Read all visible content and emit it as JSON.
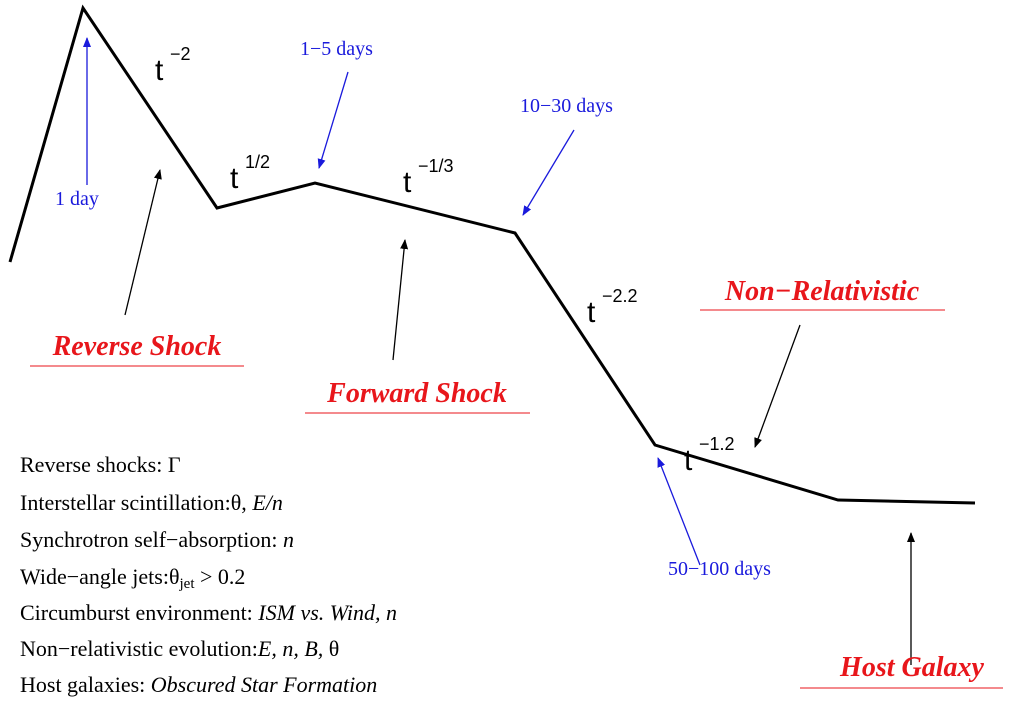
{
  "power_laws": [
    {
      "base": "t",
      "exponent": "−2"
    },
    {
      "base": "t",
      "exponent": "1/2"
    },
    {
      "base": "t",
      "exponent": "−1/3"
    },
    {
      "base": "t",
      "exponent": "−2.2"
    },
    {
      "base": "t",
      "exponent": "−1.2"
    }
  ],
  "times": [
    "1 day",
    "1−5 days",
    "10−30 days",
    "50−100 days"
  ],
  "phases": [
    "Reverse Shock",
    "Forward Shock",
    "Non−Relativistic",
    "Host Galaxy"
  ],
  "probes": [
    [
      {
        "text": "Reverse shocks: ",
        "style": "normal"
      },
      {
        "text": "Γ",
        "style": "normal"
      }
    ],
    [
      {
        "text": "Interstellar scintillation:θ, ",
        "style": "normal"
      },
      {
        "text": "E/n",
        "style": "italic"
      }
    ],
    [
      {
        "text": "Synchrotron self−absorption: ",
        "style": "normal"
      },
      {
        "text": "n",
        "style": "italic"
      }
    ],
    [
      {
        "text": "Wide−angle jets:θ",
        "style": "normal"
      },
      {
        "text": "jet",
        "style": "sub"
      },
      {
        "text": " > 0.2",
        "style": "normal"
      }
    ],
    [
      {
        "text": "Circumburst environment: ",
        "style": "normal"
      },
      {
        "text": "ISM vs. Wind, n",
        "style": "italic"
      }
    ],
    [
      {
        "text": "Non−relativistic evolution:",
        "style": "normal"
      },
      {
        "text": "E, n, B,",
        "style": "italic"
      },
      {
        "text": "  θ",
        "style": "normal"
      }
    ],
    [
      {
        "text": "Host galaxies: ",
        "style": "normal"
      },
      {
        "text": "Obscured Star Formation",
        "style": "italic"
      }
    ]
  ]
}
